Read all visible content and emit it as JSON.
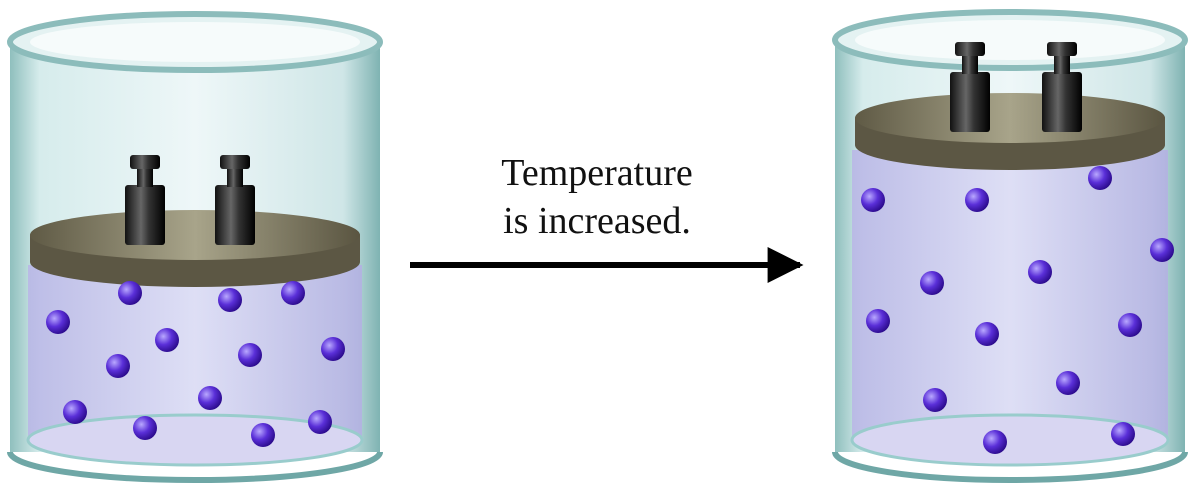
{
  "caption": {
    "line1": "Temperature",
    "line2": "is increased."
  }
}
